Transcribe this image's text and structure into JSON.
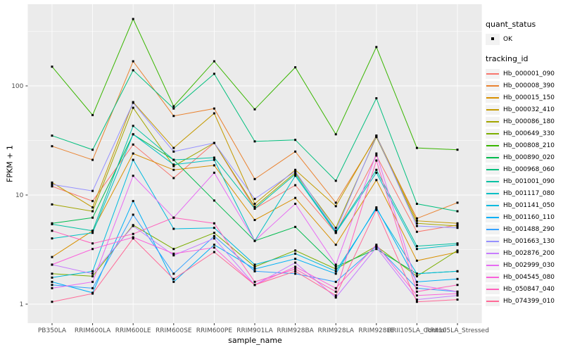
{
  "chart_data": {
    "type": "line",
    "xlabel": "sample_name",
    "ylabel": "FPKM + 1",
    "y_scale": "log10",
    "y_ticks": [
      "1",
      "10",
      "100"
    ],
    "y_tick_values": [
      1,
      10,
      100
    ],
    "y_minor_values": [
      3.1623,
      31.623,
      316.23
    ],
    "ylim": [
      0.72,
      540
    ],
    "grid": true,
    "legend_position": "right",
    "panel_bg": "#EBEBEB",
    "grid_color": "#FFFFFF",
    "point_color": "#000000",
    "point_shape": "square",
    "tick_label_color": "#4D4D4D",
    "categories": [
      "PB350LA",
      "RRIM600LA",
      "RRIM600LE",
      "RRIM600SE",
      "RRIM600PE",
      "RRIM901LA",
      "RRIM928BA",
      "RRIM928LA",
      "RRIM928LE",
      "RRII105LA_Control",
      "RRII105LA_Stressed"
    ],
    "legend": {
      "quant_status_title": "quant_status",
      "quant_status_items": [
        {
          "label": "OK",
          "marker": "black-square"
        }
      ],
      "tracking_title": "tracking_id"
    },
    "series": [
      {
        "name": "Hb_000001_090",
        "color": "#F8766D",
        "values": [
          12,
          8.8,
          29,
          14.3,
          30,
          7.5,
          12.3,
          4.5,
          23,
          4.6,
          5.3
        ]
      },
      {
        "name": "Hb_000008_390",
        "color": "#EA8331",
        "values": [
          28,
          21,
          168,
          53,
          62,
          14,
          25,
          8.5,
          34,
          6.1,
          8.5
        ]
      },
      {
        "name": "Hb_000015_150",
        "color": "#D89000",
        "values": [
          2.7,
          4.7,
          24,
          17,
          18.7,
          5.9,
          9.4,
          3.5,
          13.7,
          2.5,
          3.0
        ]
      },
      {
        "name": "Hb_000032_410",
        "color": "#C49A00",
        "values": [
          13,
          7.7,
          71,
          27,
          56,
          8.3,
          17,
          7.9,
          35,
          5.8,
          5.5
        ]
      },
      {
        "name": "Hb_000086_180",
        "color": "#A3A500",
        "values": [
          8.2,
          7.1,
          63,
          18.4,
          30,
          7.8,
          16,
          5.0,
          34,
          5.5,
          5.2
        ]
      },
      {
        "name": "Hb_000649_330",
        "color": "#7CAE00",
        "values": [
          1.9,
          1.8,
          5.3,
          3.2,
          4.5,
          2.2,
          3.1,
          2.1,
          3.4,
          1.8,
          3.1
        ]
      },
      {
        "name": "Hb_000808_210",
        "color": "#39B600",
        "values": [
          150,
          54,
          410,
          65,
          168,
          61,
          148,
          36,
          227,
          27,
          26
        ]
      },
      {
        "name": "Hb_000890_020",
        "color": "#00BB4E",
        "values": [
          5.5,
          6.2,
          36,
          21,
          8.9,
          3.8,
          5.1,
          2.2,
          3.2,
          1.9,
          2.0
        ]
      },
      {
        "name": "Hb_000968_060",
        "color": "#00BF7D",
        "values": [
          35,
          26,
          139,
          62,
          129,
          31,
          32,
          13.5,
          77,
          8.3,
          7.1
        ]
      },
      {
        "name": "Hb_001001_090",
        "color": "#00C1A3",
        "values": [
          5.4,
          4.7,
          43,
          21,
          22,
          7.5,
          15.5,
          4.6,
          17,
          3.4,
          3.6
        ]
      },
      {
        "name": "Hb_001117_080",
        "color": "#00BFC4",
        "values": [
          4.0,
          4.5,
          36,
          19,
          21,
          3.8,
          15,
          4.5,
          16,
          3.2,
          3.5
        ]
      },
      {
        "name": "Hb_001141_050",
        "color": "#00BADE",
        "values": [
          1.75,
          2.0,
          21,
          4.9,
          5.0,
          2.3,
          2.9,
          2.0,
          7.5,
          1.9,
          2.0
        ]
      },
      {
        "name": "Hb_001160_110",
        "color": "#00B0F6",
        "values": [
          1.6,
          1.27,
          8.8,
          1.6,
          3.5,
          2.1,
          2.6,
          1.9,
          7.7,
          1.6,
          1.7
        ]
      },
      {
        "name": "Hb_001488_290",
        "color": "#35A2FF",
        "values": [
          1.5,
          1.4,
          6.6,
          1.9,
          4.2,
          2.0,
          1.9,
          1.6,
          3.4,
          1.4,
          1.3
        ]
      },
      {
        "name": "Hb_001663_130",
        "color": "#9590FF",
        "values": [
          12.5,
          10.9,
          70,
          25,
          30,
          9.2,
          16.5,
          4.7,
          35,
          5.2,
          5.0
        ]
      },
      {
        "name": "Hb_002876_200",
        "color": "#C77CFF",
        "values": [
          2.3,
          1.9,
          5.2,
          2.8,
          4.0,
          1.5,
          2.4,
          1.15,
          3.3,
          1.1,
          1.2
        ]
      },
      {
        "name": "Hb_002999_030",
        "color": "#E76BF3",
        "values": [
          1.4,
          1.6,
          15,
          6.2,
          16,
          3.8,
          8.3,
          2.3,
          24,
          1.5,
          1.3
        ]
      },
      {
        "name": "Hb_004545_080",
        "color": "#FA62DB",
        "values": [
          2.3,
          3.2,
          4.1,
          2.9,
          3.3,
          1.5,
          2.2,
          1.4,
          3.5,
          1.2,
          1.25
        ]
      },
      {
        "name": "Hb_050847_040",
        "color": "#FF62BC",
        "values": [
          4.7,
          3.6,
          4.4,
          6.2,
          5.5,
          1.6,
          2.1,
          1.3,
          20.7,
          1.3,
          1.5
        ]
      },
      {
        "name": "Hb_074399_010",
        "color": "#FF6A98",
        "values": [
          1.05,
          1.25,
          4.0,
          1.7,
          3.0,
          1.5,
          2.0,
          1.2,
          7.3,
          1.05,
          1.1
        ]
      }
    ]
  }
}
